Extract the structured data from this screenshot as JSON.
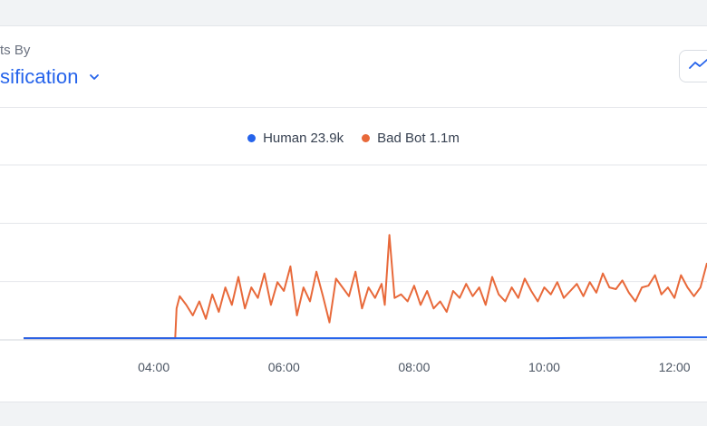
{
  "header": {
    "label": "ts By",
    "dropdown_value": "sification"
  },
  "icons": {
    "dropdown": "chevron-down-icon",
    "chart_type": "line-chart-icon"
  },
  "chart_data": {
    "type": "line",
    "title": "",
    "xlabel": "",
    "ylabel": "",
    "x_ticks": [
      "04:00",
      "06:00",
      "08:00",
      "10:00",
      "12:00"
    ],
    "x_range": [
      "02:00",
      "12:30"
    ],
    "y_range": [
      0,
      1
    ],
    "grid": true,
    "legend_position": "top-center",
    "series": [
      {
        "name": "Human",
        "total": "23.9k",
        "color": "#2563eb",
        "points": [
          [
            2.0,
            0.01
          ],
          [
            4.2,
            0.01
          ],
          [
            6.0,
            0.01
          ],
          [
            8.0,
            0.01
          ],
          [
            10.0,
            0.01
          ],
          [
            12.0,
            0.015
          ],
          [
            12.5,
            0.015
          ]
        ]
      },
      {
        "name": "Bad Bot",
        "total": "1.1m",
        "color": "#e8693a",
        "points": [
          [
            2.0,
            0.01
          ],
          [
            4.33,
            0.01
          ],
          [
            4.35,
            0.18
          ],
          [
            4.4,
            0.25
          ],
          [
            4.5,
            0.2
          ],
          [
            4.6,
            0.14
          ],
          [
            4.7,
            0.22
          ],
          [
            4.8,
            0.12
          ],
          [
            4.9,
            0.26
          ],
          [
            5.0,
            0.16
          ],
          [
            5.1,
            0.3
          ],
          [
            5.2,
            0.2
          ],
          [
            5.3,
            0.36
          ],
          [
            5.4,
            0.18
          ],
          [
            5.5,
            0.3
          ],
          [
            5.6,
            0.24
          ],
          [
            5.7,
            0.38
          ],
          [
            5.8,
            0.2
          ],
          [
            5.9,
            0.33
          ],
          [
            6.0,
            0.28
          ],
          [
            6.1,
            0.42
          ],
          [
            6.2,
            0.14
          ],
          [
            6.3,
            0.3
          ],
          [
            6.4,
            0.22
          ],
          [
            6.5,
            0.39
          ],
          [
            6.6,
            0.25
          ],
          [
            6.7,
            0.1
          ],
          [
            6.8,
            0.35
          ],
          [
            6.9,
            0.3
          ],
          [
            7.0,
            0.25
          ],
          [
            7.1,
            0.39
          ],
          [
            7.2,
            0.18
          ],
          [
            7.3,
            0.3
          ],
          [
            7.4,
            0.24
          ],
          [
            7.5,
            0.32
          ],
          [
            7.55,
            0.2
          ],
          [
            7.62,
            0.6
          ],
          [
            7.7,
            0.24
          ],
          [
            7.8,
            0.26
          ],
          [
            7.9,
            0.22
          ],
          [
            8.0,
            0.31
          ],
          [
            8.1,
            0.2
          ],
          [
            8.2,
            0.28
          ],
          [
            8.3,
            0.18
          ],
          [
            8.4,
            0.22
          ],
          [
            8.5,
            0.16
          ],
          [
            8.6,
            0.28
          ],
          [
            8.7,
            0.24
          ],
          [
            8.8,
            0.32
          ],
          [
            8.9,
            0.25
          ],
          [
            9.0,
            0.3
          ],
          [
            9.1,
            0.2
          ],
          [
            9.2,
            0.36
          ],
          [
            9.3,
            0.26
          ],
          [
            9.4,
            0.22
          ],
          [
            9.5,
            0.3
          ],
          [
            9.6,
            0.24
          ],
          [
            9.7,
            0.35
          ],
          [
            9.8,
            0.28
          ],
          [
            9.9,
            0.22
          ],
          [
            10.0,
            0.3
          ],
          [
            10.1,
            0.26
          ],
          [
            10.2,
            0.33
          ],
          [
            10.3,
            0.24
          ],
          [
            10.4,
            0.28
          ],
          [
            10.5,
            0.32
          ],
          [
            10.6,
            0.25
          ],
          [
            10.7,
            0.33
          ],
          [
            10.8,
            0.27
          ],
          [
            10.9,
            0.38
          ],
          [
            11.0,
            0.3
          ],
          [
            11.1,
            0.29
          ],
          [
            11.2,
            0.34
          ],
          [
            11.3,
            0.27
          ],
          [
            11.4,
            0.22
          ],
          [
            11.5,
            0.3
          ],
          [
            11.6,
            0.31
          ],
          [
            11.7,
            0.37
          ],
          [
            11.8,
            0.26
          ],
          [
            11.9,
            0.3
          ],
          [
            12.0,
            0.24
          ],
          [
            12.1,
            0.37
          ],
          [
            12.2,
            0.3
          ],
          [
            12.3,
            0.25
          ],
          [
            12.4,
            0.3
          ],
          [
            12.5,
            0.44
          ]
        ]
      }
    ]
  }
}
